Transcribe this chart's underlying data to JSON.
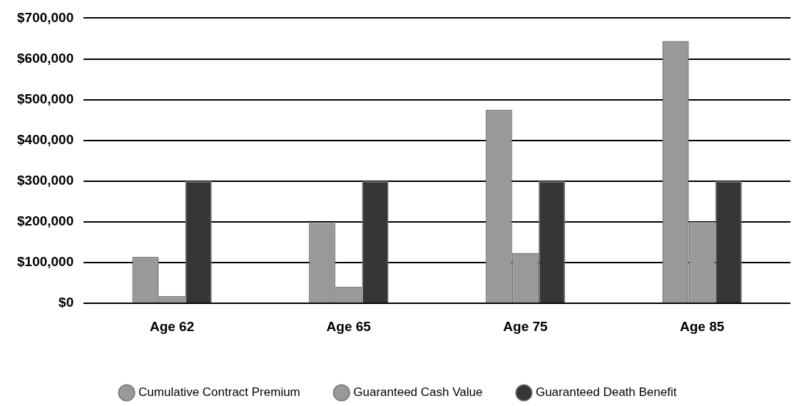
{
  "chart_data": {
    "type": "bar",
    "categories": [
      "Age 62",
      "Age 65",
      "Age 75",
      "Age 85"
    ],
    "series": [
      {
        "name": "Cumulative Contract Premium",
        "color": "#999999",
        "values": [
          114000,
          197000,
          475000,
          644000
        ]
      },
      {
        "name": "Guaranteed Cash Value",
        "color": "#999999",
        "values": [
          18000,
          41000,
          124000,
          200000
        ]
      },
      {
        "name": "Guaranteed Death Benefit",
        "color": "#363636",
        "values": [
          300000,
          300000,
          300000,
          300000
        ]
      }
    ],
    "ylim": [
      0,
      700000
    ],
    "yticks": [
      {
        "value": 0,
        "label": "$0"
      },
      {
        "value": 100000,
        "label": "$100,000"
      },
      {
        "value": 200000,
        "label": "$200,000"
      },
      {
        "value": 300000,
        "label": "$300,000"
      },
      {
        "value": 400000,
        "label": "$400,000"
      },
      {
        "value": 500000,
        "label": "$500,000"
      },
      {
        "value": 600000,
        "label": "$600,000"
      },
      {
        "value": 700000,
        "label": "$700,000"
      }
    ],
    "grid": "y",
    "legend": "bottom"
  }
}
